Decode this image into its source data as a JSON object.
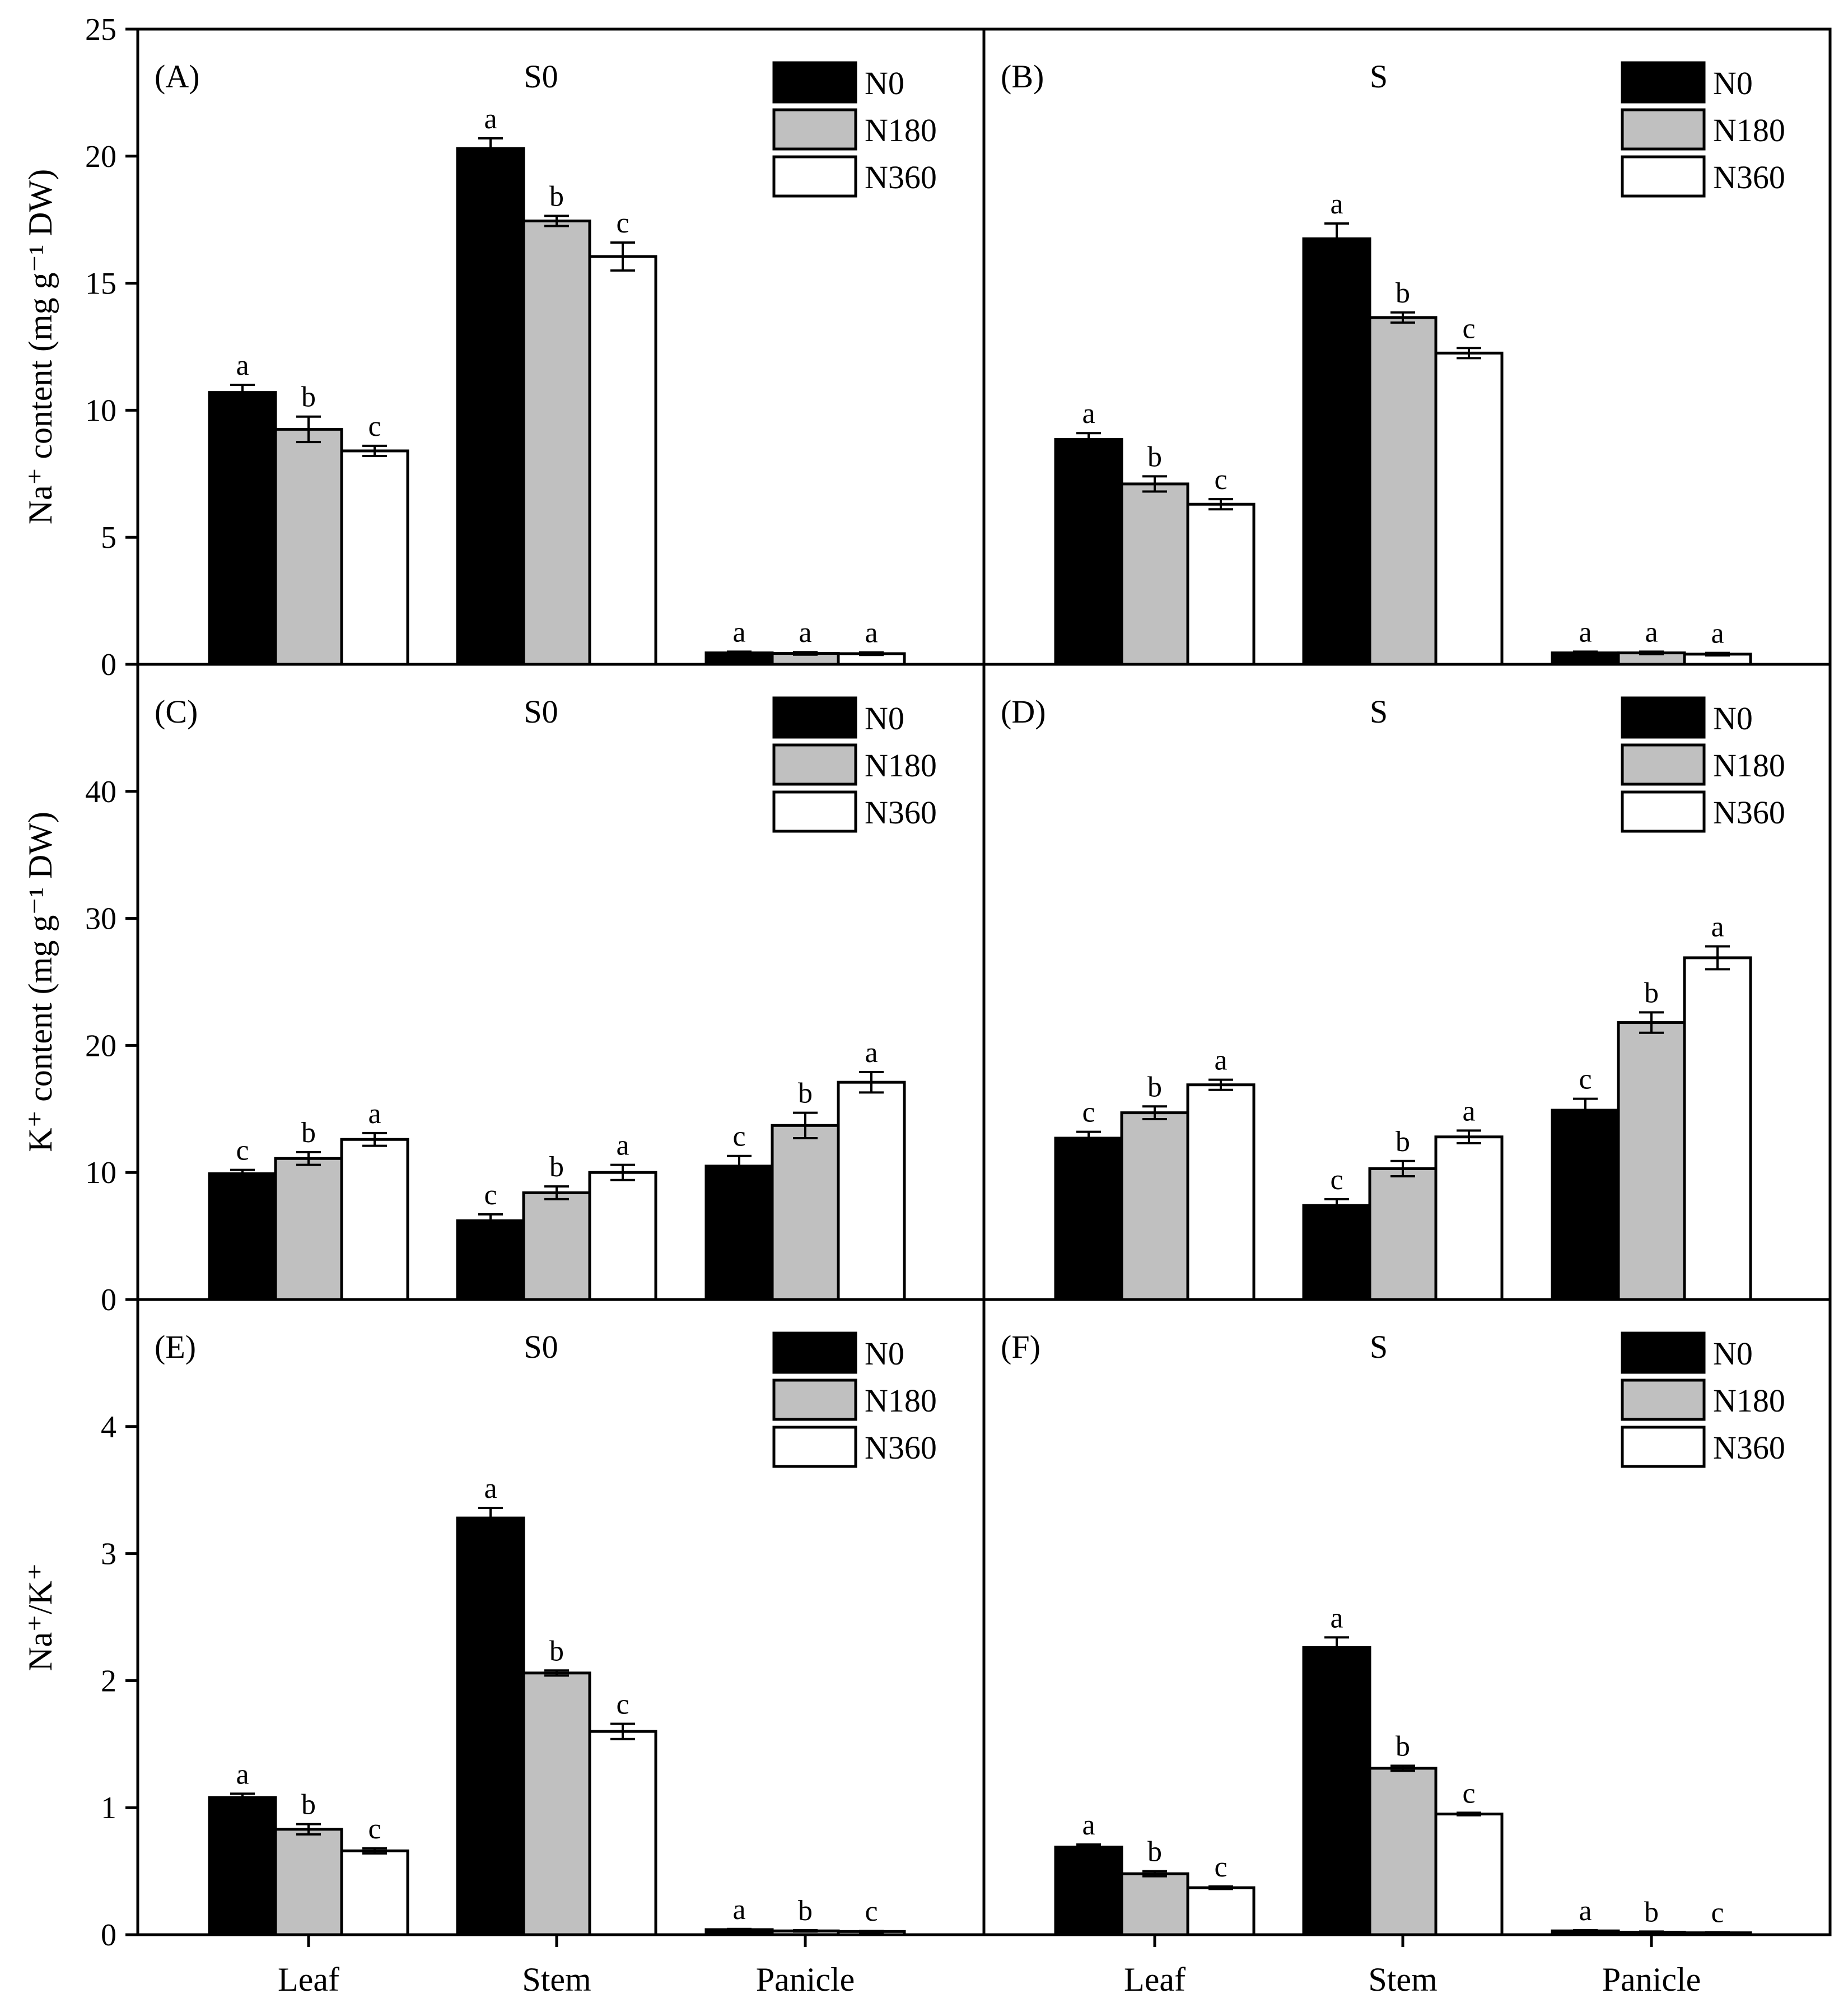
{
  "colors": {
    "series": [
      "#000000",
      "#c0c0c0",
      "#ffffff"
    ],
    "stroke": "#000000"
  },
  "legend": [
    "N0",
    "N180",
    "N360"
  ],
  "categories": [
    "Leaf",
    "Stem",
    "Panicle"
  ],
  "rows": [
    {
      "ylabel": "Na⁺ content (mg g⁻¹ DW)",
      "ylim": [
        0,
        25
      ],
      "ticks": [
        0,
        5,
        10,
        15,
        20,
        25
      ]
    },
    {
      "ylabel": "K⁺ content (mg g⁻¹ DW)",
      "ylim": [
        0,
        50
      ],
      "ticks": [
        0,
        10,
        20,
        30,
        40
      ]
    },
    {
      "ylabel": "Na⁺/K⁺",
      "ylim": [
        0,
        5
      ],
      "ticks": [
        0,
        1,
        2,
        3,
        4
      ]
    }
  ],
  "chart_data": [
    {
      "type": "bar",
      "panel": "(A)",
      "title": "S0",
      "row": 0,
      "col": 0,
      "categories": [
        "Leaf",
        "Stem",
        "Panicle"
      ],
      "series": [
        {
          "name": "N0",
          "values": [
            10.7,
            20.3,
            0.45
          ],
          "errors": [
            0.3,
            0.4,
            0.05
          ],
          "letters": [
            "a",
            "a",
            "a"
          ]
        },
        {
          "name": "N180",
          "values": [
            9.25,
            17.45,
            0.43
          ],
          "errors": [
            0.5,
            0.2,
            0.05
          ],
          "letters": [
            "b",
            "b",
            "a"
          ]
        },
        {
          "name": "N360",
          "values": [
            8.4,
            16.05,
            0.42
          ],
          "errors": [
            0.2,
            0.55,
            0.05
          ],
          "letters": [
            "c",
            "c",
            "a"
          ]
        }
      ]
    },
    {
      "type": "bar",
      "panel": "(B)",
      "title": "S",
      "row": 0,
      "col": 1,
      "categories": [
        "Leaf",
        "Stem",
        "Panicle"
      ],
      "series": [
        {
          "name": "N0",
          "values": [
            8.85,
            16.75,
            0.45
          ],
          "errors": [
            0.25,
            0.6,
            0.05
          ],
          "letters": [
            "a",
            "a",
            "a"
          ]
        },
        {
          "name": "N180",
          "values": [
            7.1,
            13.65,
            0.45
          ],
          "errors": [
            0.3,
            0.2,
            0.05
          ],
          "letters": [
            "b",
            "b",
            "a"
          ]
        },
        {
          "name": "N360",
          "values": [
            6.3,
            12.25,
            0.4
          ],
          "errors": [
            0.2,
            0.2,
            0.05
          ],
          "letters": [
            "c",
            "c",
            "a"
          ]
        }
      ]
    },
    {
      "type": "bar",
      "panel": "(C)",
      "title": "S0",
      "row": 1,
      "col": 0,
      "categories": [
        "Leaf",
        "Stem",
        "Panicle"
      ],
      "series": [
        {
          "name": "N0",
          "values": [
            9.9,
            6.2,
            10.5
          ],
          "errors": [
            0.3,
            0.5,
            0.8
          ],
          "letters": [
            "c",
            "c",
            "c"
          ]
        },
        {
          "name": "N180",
          "values": [
            11.1,
            8.4,
            13.7
          ],
          "errors": [
            0.5,
            0.5,
            1.0
          ],
          "letters": [
            "b",
            "b",
            "b"
          ]
        },
        {
          "name": "N360",
          "values": [
            12.6,
            10.0,
            17.1
          ],
          "errors": [
            0.5,
            0.6,
            0.8
          ],
          "letters": [
            "a",
            "a",
            "a"
          ]
        }
      ]
    },
    {
      "type": "bar",
      "panel": "(D)",
      "title": "S",
      "row": 1,
      "col": 1,
      "categories": [
        "Leaf",
        "Stem",
        "Panicle"
      ],
      "series": [
        {
          "name": "N0",
          "values": [
            12.7,
            7.4,
            14.9
          ],
          "errors": [
            0.5,
            0.5,
            0.9
          ],
          "letters": [
            "c",
            "c",
            "c"
          ]
        },
        {
          "name": "N180",
          "values": [
            14.7,
            10.3,
            21.8
          ],
          "errors": [
            0.5,
            0.6,
            0.8
          ],
          "letters": [
            "b",
            "b",
            "b"
          ]
        },
        {
          "name": "N360",
          "values": [
            16.9,
            12.8,
            26.9
          ],
          "errors": [
            0.4,
            0.5,
            0.9
          ],
          "letters": [
            "a",
            "a",
            "a"
          ]
        }
      ]
    },
    {
      "type": "bar",
      "panel": "(E)",
      "title": "S0",
      "row": 2,
      "col": 0,
      "categories": [
        "Leaf",
        "Stem",
        "Panicle"
      ],
      "series": [
        {
          "name": "N0",
          "values": [
            1.08,
            3.28,
            0.04
          ],
          "errors": [
            0.03,
            0.08,
            0.005
          ],
          "letters": [
            "a",
            "a",
            "a"
          ]
        },
        {
          "name": "N180",
          "values": [
            0.83,
            2.06,
            0.03
          ],
          "errors": [
            0.04,
            0.02,
            0.005
          ],
          "letters": [
            "b",
            "b",
            "b"
          ]
        },
        {
          "name": "N360",
          "values": [
            0.66,
            1.6,
            0.025
          ],
          "errors": [
            0.02,
            0.06,
            0.005
          ],
          "letters": [
            "c",
            "c",
            "c"
          ]
        }
      ]
    },
    {
      "type": "bar",
      "panel": "(F)",
      "title": "S",
      "row": 2,
      "col": 1,
      "categories": [
        "Leaf",
        "Stem",
        "Panicle"
      ],
      "series": [
        {
          "name": "N0",
          "values": [
            0.69,
            2.26,
            0.03
          ],
          "errors": [
            0.02,
            0.08,
            0.005
          ],
          "letters": [
            "a",
            "a",
            "a"
          ]
        },
        {
          "name": "N180",
          "values": [
            0.48,
            1.31,
            0.02
          ],
          "errors": [
            0.02,
            0.02,
            0.005
          ],
          "letters": [
            "b",
            "b",
            "b"
          ]
        },
        {
          "name": "N360",
          "values": [
            0.37,
            0.95,
            0.015
          ],
          "errors": [
            0.01,
            0.01,
            0.005
          ],
          "letters": [
            "c",
            "c",
            "c"
          ]
        }
      ]
    }
  ]
}
